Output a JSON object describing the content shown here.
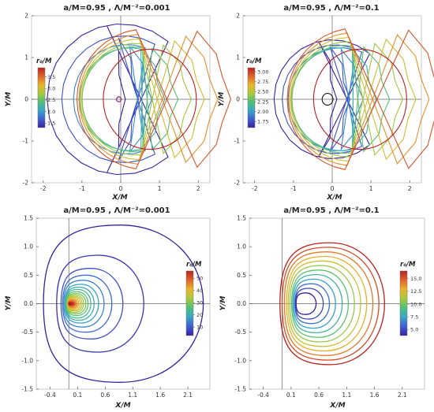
{
  "colors": {
    "scale": [
      "#3a1f9f",
      "#3f5fd0",
      "#3aa6c8",
      "#4dbf7a",
      "#a9c93a",
      "#e8b52a",
      "#e0642a",
      "#b8211f"
    ]
  },
  "chart_data": [
    {
      "type": "line",
      "title": "a/M=0.95 , Λ/M⁻²=0.001",
      "xlabel": "X/M",
      "ylabel": "Y/M",
      "xlim": [
        -2.3,
        2.3
      ],
      "ylim": [
        -2,
        2
      ],
      "xticks": [
        -2,
        -1,
        0,
        1,
        2
      ],
      "yticks": [
        -2,
        -1,
        0,
        1,
        2
      ],
      "xtick_labels": [
        "-2",
        "-1",
        "0",
        "1",
        "2"
      ],
      "ytick_labels": [
        "-2",
        "-1",
        "0",
        "1",
        "2"
      ],
      "legend": {
        "title": "r₀/M",
        "labels": [
          "3.5",
          "3.0",
          "2.5",
          "2.0",
          "1.5"
        ],
        "range": [
          1.3,
          3.9
        ],
        "label_values": [
          3.5,
          3.0,
          2.5,
          2.0,
          1.5
        ]
      },
      "series_kind": "arc-shells",
      "shells": [
        {
          "kind": "arc",
          "r": 1.9,
          "span": 40
        },
        {
          "kind": "arc",
          "r": 1.6,
          "span": 30
        },
        {
          "kind": "arc",
          "r": 1.38,
          "span": 20
        },
        {
          "kind": "arc",
          "r": 1.3,
          "span": 15
        },
        {
          "kind": "arc",
          "r": 1.32,
          "span": 10
        },
        {
          "kind": "arc",
          "r": 1.41,
          "span": 5
        },
        {
          "kind": "arc",
          "r": 1.52,
          "span": 0
        },
        {
          "kind": "arc",
          "r": 1.64,
          "span": -4
        },
        {
          "kind": "arc",
          "r": 1.77,
          "span": -8
        },
        {
          "kind": "circle",
          "cx": 0.75,
          "r": 1.2
        }
      ],
      "small_circle": {
        "cx": -0.05,
        "r": 0.06
      }
    },
    {
      "type": "line",
      "title": "a/M=0.95 , Λ/M⁻²=0.1",
      "xlabel": "X/M",
      "ylabel": "Y/M",
      "xlim": [
        -2.3,
        2.3
      ],
      "ylim": [
        -2,
        2
      ],
      "xticks": [
        -2,
        -1,
        0,
        1,
        2
      ],
      "yticks": [
        -2,
        -1,
        0,
        1,
        2
      ],
      "xtick_labels": [
        "-2",
        "-1",
        "0",
        "1",
        "2"
      ],
      "ytick_labels": [
        "-2",
        "-1",
        "0",
        "1",
        "2"
      ],
      "legend": {
        "title": "r₀/M",
        "labels": [
          "3.00",
          "2.75",
          "2.50",
          "2.25",
          "2.00",
          "1.75"
        ],
        "range": [
          1.6,
          3.1
        ],
        "label_values": [
          3.0,
          2.75,
          2.5,
          2.25,
          2.0,
          1.75
        ]
      },
      "series_kind": "arc-shells",
      "shells": [
        {
          "kind": "arc",
          "r": 1.5,
          "span": 40
        },
        {
          "kind": "arc",
          "r": 1.37,
          "span": 30
        },
        {
          "kind": "arc",
          "r": 1.3,
          "span": 20
        },
        {
          "kind": "arc",
          "r": 1.3,
          "span": 14
        },
        {
          "kind": "arc",
          "r": 1.36,
          "span": 8
        },
        {
          "kind": "arc",
          "r": 1.45,
          "span": 3
        },
        {
          "kind": "arc",
          "r": 1.56,
          "span": -2
        },
        {
          "kind": "arc",
          "r": 1.68,
          "span": -6
        },
        {
          "kind": "arc",
          "r": 1.8,
          "span": -10
        },
        {
          "kind": "circle",
          "cx": 0.72,
          "r": 1.2
        }
      ],
      "small_circle": {
        "cx": -0.12,
        "r": 0.14
      }
    },
    {
      "type": "line",
      "title": "a/M=0.95 , Λ/M⁻²=0.001",
      "xlabel": "X/M",
      "ylabel": "Y/M",
      "xlim": [
        -0.65,
        2.5
      ],
      "ylim": [
        -1.5,
        1.5
      ],
      "xticks": [
        -0.4,
        0.1,
        0.6,
        1.1,
        1.6,
        2.1
      ],
      "yticks": [
        -1.5,
        -1.0,
        -0.5,
        0.0,
        0.5,
        1.0,
        1.5
      ],
      "xtick_labels": [
        "-0.4",
        "0.1",
        "0.6",
        "1.1",
        "1.6",
        "2.1"
      ],
      "ytick_labels": [
        "-1.5",
        "-1.0",
        "-0.5",
        "0.0",
        "0.5",
        "1.0",
        "1.5"
      ],
      "legend": {
        "title": "r₀/M",
        "labels": [
          "50",
          "40",
          "30",
          "20",
          "10"
        ],
        "range": [
          3,
          56
        ],
        "label_values": [
          50,
          40,
          30,
          20,
          10
        ]
      },
      "series_kind": "nested-loops",
      "origin_x": -0.06,
      "loops": [
        {
          "right": 2.38,
          "half_height": 1.38,
          "left": -0.52
        },
        {
          "right": 1.3,
          "half_height": 0.85,
          "left": -0.28
        },
        {
          "right": 0.92,
          "half_height": 0.62,
          "left": -0.2
        },
        {
          "right": 0.72,
          "half_height": 0.5,
          "left": -0.17
        },
        {
          "right": 0.58,
          "half_height": 0.41,
          "left": -0.15
        },
        {
          "right": 0.48,
          "half_height": 0.34,
          "left": -0.13
        },
        {
          "right": 0.4,
          "half_height": 0.29,
          "left": -0.12
        },
        {
          "right": 0.34,
          "half_height": 0.25,
          "left": -0.11
        },
        {
          "right": 0.29,
          "half_height": 0.21,
          "left": -0.1
        },
        {
          "right": 0.25,
          "half_height": 0.18,
          "left": -0.09
        },
        {
          "right": 0.21,
          "half_height": 0.155,
          "left": -0.085
        },
        {
          "right": 0.18,
          "half_height": 0.13,
          "left": -0.08
        },
        {
          "right": 0.15,
          "half_height": 0.11,
          "left": -0.075
        },
        {
          "right": 0.12,
          "half_height": 0.09,
          "left": -0.07
        },
        {
          "right": 0.095,
          "half_height": 0.07,
          "left": -0.068
        },
        {
          "right": 0.07,
          "half_height": 0.052,
          "left": -0.066
        },
        {
          "right": 0.05,
          "half_height": 0.036,
          "left": -0.064
        },
        {
          "right": 0.03,
          "half_height": 0.022,
          "left": -0.062
        },
        {
          "right": 0.012,
          "half_height": 0.01,
          "left": -0.061
        }
      ]
    },
    {
      "type": "line",
      "title": "a/M=0.95 , Λ/M⁻²=0.1",
      "xlabel": "X/M",
      "ylabel": "Y/M",
      "xlim": [
        -0.65,
        2.5
      ],
      "ylim": [
        -1.5,
        1.5
      ],
      "xticks": [
        -0.4,
        0.1,
        0.6,
        1.1,
        1.6,
        2.1
      ],
      "yticks": [
        -1.5,
        -1.0,
        -0.5,
        0.0,
        0.5,
        1.0,
        1.5
      ],
      "xtick_labels": [
        "-0.4",
        "0.1",
        "0.6",
        "1.1",
        "1.6",
        "2.1"
      ],
      "ytick_labels": [
        "-1.5",
        "-1.0",
        "-0.5",
        "0.0",
        "0.5",
        "1.0",
        "1.5"
      ],
      "legend": {
        "title": "r₀/M",
        "labels": [
          "15.0",
          "12.5",
          "10.0",
          "7.5",
          "5.0"
        ],
        "range": [
          3.8,
          16.5
        ],
        "label_values": [
          15.0,
          12.5,
          10.0,
          7.5,
          5.0
        ]
      },
      "series_kind": "nested-loops",
      "origin_x": -0.06,
      "loops": [
        {
          "right": 1.78,
          "half_height": 1.07,
          "left": -0.1
        },
        {
          "right": 1.68,
          "half_height": 0.99,
          "left": -0.06
        },
        {
          "right": 1.57,
          "half_height": 0.91,
          "left": -0.02
        },
        {
          "right": 1.46,
          "half_height": 0.83,
          "left": 0.02
        },
        {
          "right": 1.35,
          "half_height": 0.75,
          "left": 0.05
        },
        {
          "right": 1.24,
          "half_height": 0.67,
          "left": 0.08
        },
        {
          "right": 1.13,
          "half_height": 0.59,
          "left": 0.11
        },
        {
          "right": 1.02,
          "half_height": 0.51,
          "left": 0.13
        },
        {
          "right": 0.9,
          "half_height": 0.43,
          "left": 0.15
        },
        {
          "right": 0.79,
          "half_height": 0.35,
          "left": 0.17
        },
        {
          "right": 0.68,
          "half_height": 0.27,
          "left": 0.18
        },
        {
          "right": 0.55,
          "half_height": 0.19,
          "left": 0.19
        }
      ]
    }
  ]
}
